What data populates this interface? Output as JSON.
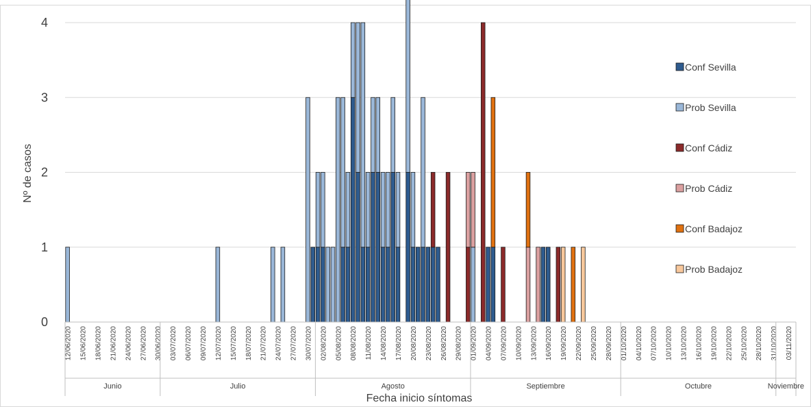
{
  "chart_data": {
    "type": "bar",
    "stacked": true,
    "xlabel": "Fecha inicio síntomas",
    "ylabel": "Nº de casos",
    "ylim": [
      0,
      4
    ],
    "yticks": [
      0,
      1,
      2,
      3,
      4
    ],
    "grid": true,
    "legend_position": "right",
    "x_start": "12/06/2020",
    "x_end": "04/11/2020",
    "x_tick_labels": [
      "12/06/2020",
      "15/06/2020",
      "18/06/2020",
      "21/06/2020",
      "24/06/2020",
      "27/06/2020",
      "30/06/2020",
      "03/07/2020",
      "06/07/2020",
      "09/07/2020",
      "12/07/2020",
      "15/07/2020",
      "18/07/2020",
      "21/07/2020",
      "24/07/2020",
      "27/07/2020",
      "30/07/2020",
      "02/08/2020",
      "05/08/2020",
      "08/08/2020",
      "11/08/2020",
      "14/08/2020",
      "17/08/2020",
      "20/08/2020",
      "23/08/2020",
      "26/08/2020",
      "29/08/2020",
      "01/09/2020",
      "04/09/2020",
      "07/09/2020",
      "10/09/2020",
      "13/09/2020",
      "16/09/2020",
      "19/09/2020",
      "22/09/2020",
      "25/09/2020",
      "28/09/2020",
      "01/10/2020",
      "04/10/2020",
      "07/10/2020",
      "10/10/2020",
      "13/10/2020",
      "16/10/2020",
      "19/10/2020",
      "22/10/2020",
      "25/10/2020",
      "28/10/2020",
      "31/10/2020",
      "03/11/2020"
    ],
    "months": [
      {
        "name": "Junio",
        "start": "12/06/2020",
        "end": "30/06/2020"
      },
      {
        "name": "Julio",
        "start": "01/07/2020",
        "end": "31/07/2020"
      },
      {
        "name": "Agosto",
        "start": "01/08/2020",
        "end": "31/08/2020"
      },
      {
        "name": "Septiembre",
        "start": "01/09/2020",
        "end": "30/09/2020"
      },
      {
        "name": "Octubre",
        "start": "01/10/2020",
        "end": "31/10/2020"
      },
      {
        "name": "Noviembre",
        "start": "01/11/2020",
        "end": "04/11/2020"
      }
    ],
    "series": [
      {
        "name": "Conf Sevilla",
        "color": "#2e5b8e",
        "points": [
          [
            "31/07/2020",
            1
          ],
          [
            "01/08/2020",
            1
          ],
          [
            "02/08/2020",
            1
          ],
          [
            "06/08/2020",
            1
          ],
          [
            "07/08/2020",
            1
          ],
          [
            "08/08/2020",
            3
          ],
          [
            "09/08/2020",
            2
          ],
          [
            "10/08/2020",
            1
          ],
          [
            "11/08/2020",
            1
          ],
          [
            "12/08/2020",
            2
          ],
          [
            "13/08/2020",
            2
          ],
          [
            "14/08/2020",
            1
          ],
          [
            "15/08/2020",
            1
          ],
          [
            "16/08/2020",
            2
          ],
          [
            "17/08/2020",
            1
          ],
          [
            "19/08/2020",
            2
          ],
          [
            "20/08/2020",
            1
          ],
          [
            "21/08/2020",
            1
          ],
          [
            "22/08/2020",
            1
          ],
          [
            "23/08/2020",
            1
          ],
          [
            "24/08/2020",
            1
          ],
          [
            "25/08/2020",
            1
          ],
          [
            "04/09/2020",
            1
          ],
          [
            "05/09/2020",
            1
          ],
          [
            "15/09/2020",
            1
          ],
          [
            "16/09/2020",
            1
          ]
        ]
      },
      {
        "name": "Prob Sevilla",
        "color": "#9ab7d8",
        "points": [
          [
            "12/06/2020",
            1
          ],
          [
            "12/07/2020",
            1
          ],
          [
            "23/07/2020",
            1
          ],
          [
            "25/07/2020",
            1
          ],
          [
            "30/07/2020",
            3
          ],
          [
            "01/08/2020",
            1
          ],
          [
            "02/08/2020",
            1
          ],
          [
            "03/08/2020",
            1
          ],
          [
            "04/08/2020",
            1
          ],
          [
            "05/08/2020",
            3
          ],
          [
            "06/08/2020",
            2
          ],
          [
            "07/08/2020",
            1
          ],
          [
            "08/08/2020",
            1
          ],
          [
            "09/08/2020",
            2
          ],
          [
            "10/08/2020",
            3
          ],
          [
            "11/08/2020",
            1
          ],
          [
            "12/08/2020",
            1
          ],
          [
            "13/08/2020",
            1
          ],
          [
            "14/08/2020",
            1
          ],
          [
            "15/08/2020",
            1
          ],
          [
            "16/08/2020",
            1
          ],
          [
            "17/08/2020",
            1
          ],
          [
            "19/08/2020",
            3
          ],
          [
            "20/08/2020",
            1
          ],
          [
            "22/08/2020",
            2
          ],
          [
            "01/09/2020",
            1
          ]
        ]
      },
      {
        "name": "Conf Cádiz",
        "color": "#8b2a2a",
        "points": [
          [
            "24/08/2020",
            1
          ],
          [
            "27/08/2020",
            2
          ],
          [
            "31/08/2020",
            1
          ],
          [
            "03/09/2020",
            4
          ],
          [
            "07/09/2020",
            1
          ],
          [
            "18/09/2020",
            1
          ]
        ]
      },
      {
        "name": "Prob Cádiz",
        "color": "#dba0a0",
        "points": [
          [
            "31/08/2020",
            1
          ],
          [
            "01/09/2020",
            1
          ],
          [
            "12/09/2020",
            1
          ],
          [
            "14/09/2020",
            1
          ]
        ]
      },
      {
        "name": "Conf Badajoz",
        "color": "#e07110",
        "points": [
          [
            "05/09/2020",
            2
          ],
          [
            "12/09/2020",
            1
          ],
          [
            "21/09/2020",
            1
          ]
        ]
      },
      {
        "name": "Prob Badajoz",
        "color": "#f8c89c",
        "points": [
          [
            "19/09/2020",
            1
          ],
          [
            "23/09/2020",
            1
          ]
        ]
      }
    ]
  }
}
